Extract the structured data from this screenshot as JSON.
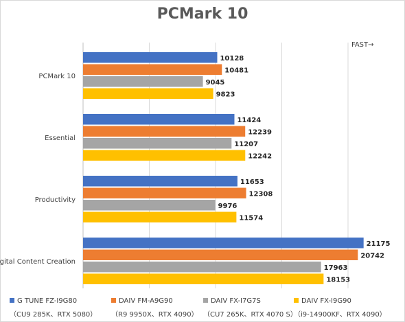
{
  "chart_data": {
    "type": "bar",
    "orientation": "horizontal",
    "title": "PCMark 10",
    "annotation": "FAST→",
    "categories": [
      "PCMark 10",
      "Essential",
      "Productivity",
      "Digital Content Creation"
    ],
    "series": [
      {
        "name": "G TUNE FZ-I9G80",
        "subtitle": "（CU9 285K、RTX 5080）",
        "color": "#4472c4",
        "values": [
          10128,
          11424,
          11653,
          21175
        ]
      },
      {
        "name": "DAIV FM-A9G90",
        "subtitle": "（R9 9950X、RTX 4090）",
        "color": "#ed7d31",
        "values": [
          10481,
          12239,
          12308,
          20742
        ]
      },
      {
        "name": "DAIV FX-I7G7S",
        "subtitle": "（CU7 265K、RTX 4070 S）",
        "color": "#a5a5a5",
        "values": [
          9045,
          11207,
          9976,
          17963
        ]
      },
      {
        "name": "DAIV FX-I9G90",
        "subtitle": "（i9-14900KF、RTX 4090）",
        "color": "#ffc000",
        "values": [
          9823,
          12242,
          11574,
          18153
        ]
      }
    ],
    "xlim": [
      0,
      25000
    ],
    "grid": true,
    "legend_position": "bottom"
  }
}
